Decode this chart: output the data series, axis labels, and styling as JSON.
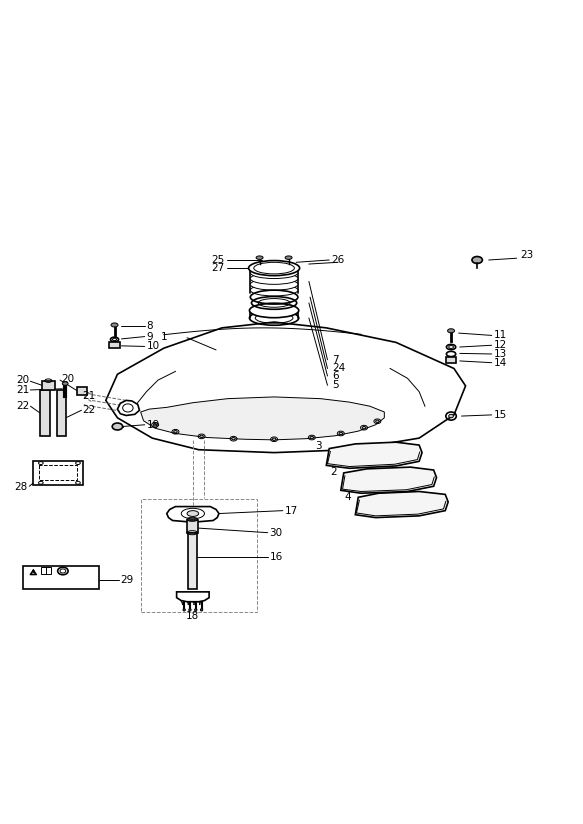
{
  "bg_color": "#ffffff",
  "line_color": "#000000",
  "line_width": 1.2,
  "thin_line": 0.7,
  "fig_width": 5.83,
  "fig_height": 8.24,
  "dpi": 100
}
